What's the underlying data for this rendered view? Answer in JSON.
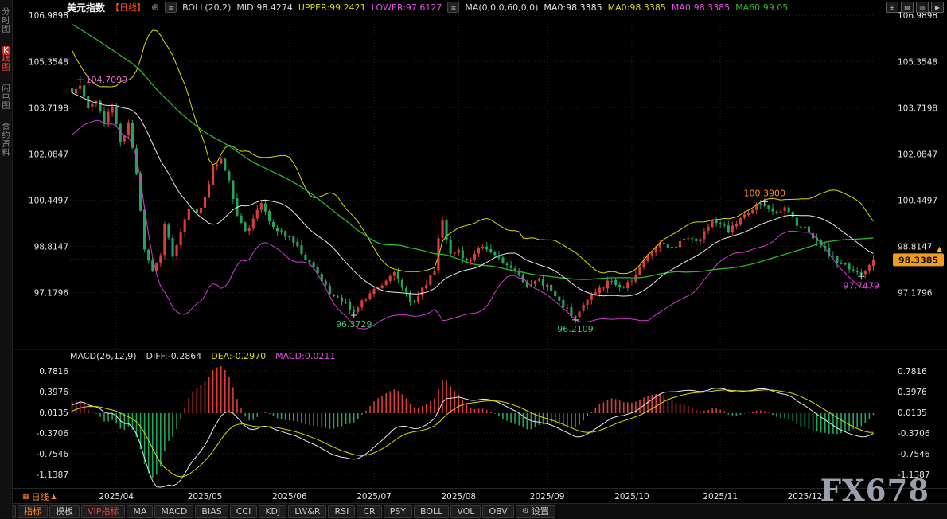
{
  "app": {
    "watermark": "FX678",
    "background": "#000000"
  },
  "sidebar": {
    "items": [
      {
        "label": "分时图",
        "active": false
      },
      {
        "label": "K线图",
        "active": true
      },
      {
        "label": "闪电图",
        "active": false
      },
      {
        "label": "合约资料",
        "active": false
      }
    ]
  },
  "header": {
    "symbol": "美元指数",
    "period": "【日线】",
    "add_glyph": "⊕",
    "badge_glyph": "≣",
    "boll_label": "BOLL(20,2)",
    "boll_mid": "MID:98.4274",
    "boll_upper": "UPPER:99.2421",
    "boll_lower": "LOWER:97.6127",
    "ma_label": "MA(0,0,0,60,0,0)",
    "ma_values": [
      {
        "text": "MA0:98.3385",
        "color": "#e8e8e8"
      },
      {
        "text": "MA0:98.3385",
        "color": "#d6d909"
      },
      {
        "text": "MA0:98.3385",
        "color": "#e24fe2"
      },
      {
        "text": "MA60:99.05",
        "color": "#2db52d"
      }
    ],
    "toolbar_icons": [
      {
        "name": "layout-grid-icon",
        "glyph": "⊞"
      },
      {
        "name": "layout-rows-icon",
        "glyph": "▤"
      },
      {
        "name": "layout-columns-icon",
        "glyph": "▥"
      },
      {
        "name": "expand-icon",
        "glyph": "▶"
      }
    ]
  },
  "main_chart": {
    "y_labels": [
      "106.9898",
      "105.3548",
      "103.7198",
      "102.0847",
      "100.4497",
      "98.8147",
      "97.1796"
    ],
    "y_values": [
      106.9898,
      105.3548,
      103.7198,
      102.0847,
      100.4497,
      98.8147,
      97.1796
    ],
    "ylim": [
      95.25,
      107.25
    ],
    "last_price": "98.3385",
    "last_price_value": 98.3385,
    "annotations": [
      {
        "text": "104.7099",
        "index": 2,
        "price": 104.7099,
        "color": "#e06ac0",
        "placement": "right"
      },
      {
        "text": "100.3900",
        "index": 172,
        "price": 100.39,
        "color": "#ff8c1a",
        "placement": "above"
      },
      {
        "text": "96.3729",
        "index": 70,
        "price": 96.3729,
        "color": "#35c06a",
        "placement": "below"
      },
      {
        "text": "96.2109",
        "index": 125,
        "price": 96.2109,
        "color": "#35c06a",
        "placement": "below"
      },
      {
        "text": "97.7479",
        "index": 196,
        "price": 97.7479,
        "color": "#e24fe2",
        "placement": "below"
      }
    ]
  },
  "macd_panel": {
    "label": "MACD(26,12,9)",
    "diff": "DIFF:-0.2864",
    "dea": "DEA:-0.2970",
    "macd": "MACD:0.0211",
    "y_labels": [
      "0.7816",
      "0.3976",
      "0.0135",
      "-0.3706",
      "-0.7546",
      "-1.1387"
    ],
    "y_values": [
      0.7816,
      0.3976,
      0.0135,
      -0.3706,
      -0.7546,
      -1.1387
    ],
    "ylim": [
      -1.375,
      0.945
    ]
  },
  "x_axis": {
    "labels": [
      {
        "text": "2025/04",
        "index": 11
      },
      {
        "text": "2025/05",
        "index": 33
      },
      {
        "text": "2025/06",
        "index": 54
      },
      {
        "text": "2025/07",
        "index": 75
      },
      {
        "text": "2025/08",
        "index": 96
      },
      {
        "text": "2025/09",
        "index": 118
      },
      {
        "text": "2025/10",
        "index": 139
      },
      {
        "text": "2025/11",
        "index": 161
      },
      {
        "text": "2025/12",
        "index": 182
      }
    ]
  },
  "bottom": {
    "period_tab": {
      "icon_glyph": "▦",
      "label": "日线",
      "arrow": "▲"
    },
    "panel_icon": "⊞",
    "tabs": [
      {
        "label": "指标",
        "accent": true
      },
      {
        "label": "模板"
      },
      {
        "label": "VIP指标",
        "vip": true
      },
      {
        "label": "MA"
      },
      {
        "label": "MACD"
      },
      {
        "label": "BIAS"
      },
      {
        "label": "CCI"
      },
      {
        "label": "KDJ"
      },
      {
        "label": "LW&R"
      },
      {
        "label": "RSI"
      },
      {
        "label": "CR"
      },
      {
        "label": "PSY"
      },
      {
        "label": "BOLL"
      },
      {
        "label": "VOL"
      },
      {
        "label": "OBV"
      },
      {
        "label": "设置",
        "icon": "⚙"
      }
    ]
  },
  "chart_data": {
    "type": "candlestick",
    "instrument": "美元指数",
    "period": "日线",
    "n": 200,
    "seed": 11,
    "wiggle": 0.14,
    "wick": 0.16,
    "colors": {
      "up": "#dd3c3c",
      "down": "#23a55e",
      "boll_mid": "#e8e8e8",
      "boll_up": "#d6d909",
      "boll_low": "#d23bd2",
      "ma60": "#2db52d",
      "diff": "#e8e8e8",
      "dea": "#d6d909",
      "grid": "#232323",
      "axis_text": "#e3e3e3",
      "last_price_line": "#ff9000",
      "last_price_box": "#f09d1d"
    },
    "indicators": {
      "boll": {
        "period": 20,
        "k": 2
      },
      "ma60": 60,
      "macd": {
        "fast": 12,
        "slow": 26,
        "signal": 9
      }
    },
    "waypoints": [
      [
        0,
        104.25
      ],
      [
        2,
        104.5
      ],
      [
        4,
        103.7
      ],
      [
        6,
        103.95
      ],
      [
        8,
        103.2
      ],
      [
        10,
        103.75
      ],
      [
        12,
        102.5
      ],
      [
        14,
        103.2
      ],
      [
        16,
        101.4
      ],
      [
        18,
        98.7
      ],
      [
        20,
        97.95
      ],
      [
        22,
        98.5
      ],
      [
        23,
        99.6
      ],
      [
        25,
        98.45
      ],
      [
        27,
        99.3
      ],
      [
        29,
        100.15
      ],
      [
        31,
        100.0
      ],
      [
        33,
        100.55
      ],
      [
        35,
        101.65
      ],
      [
        37,
        101.9
      ],
      [
        39,
        101.15
      ],
      [
        41,
        99.9
      ],
      [
        43,
        99.35
      ],
      [
        45,
        99.8
      ],
      [
        47,
        100.35
      ],
      [
        49,
        99.7
      ],
      [
        51,
        99.35
      ],
      [
        53,
        99.15
      ],
      [
        55,
        98.95
      ],
      [
        57,
        98.55
      ],
      [
        59,
        98.25
      ],
      [
        61,
        97.85
      ],
      [
        63,
        97.45
      ],
      [
        65,
        97.05
      ],
      [
        67,
        96.85
      ],
      [
        69,
        96.55
      ],
      [
        70,
        96.5
      ],
      [
        72,
        96.9
      ],
      [
        74,
        97.15
      ],
      [
        76,
        97.35
      ],
      [
        78,
        97.6
      ],
      [
        80,
        97.9
      ],
      [
        82,
        97.35
      ],
      [
        84,
        96.85
      ],
      [
        86,
        97.05
      ],
      [
        88,
        97.45
      ],
      [
        90,
        97.95
      ],
      [
        91,
        99.1
      ],
      [
        92,
        99.75
      ],
      [
        93,
        99.05
      ],
      [
        94,
        98.55
      ],
      [
        96,
        98.7
      ],
      [
        98,
        98.35
      ],
      [
        100,
        98.55
      ],
      [
        102,
        98.8
      ],
      [
        104,
        98.6
      ],
      [
        106,
        98.4
      ],
      [
        108,
        98.15
      ],
      [
        110,
        97.95
      ],
      [
        112,
        97.55
      ],
      [
        114,
        97.45
      ],
      [
        116,
        97.65
      ],
      [
        118,
        97.45
      ],
      [
        120,
        97.05
      ],
      [
        122,
        96.65
      ],
      [
        124,
        96.35
      ],
      [
        125,
        96.3
      ],
      [
        127,
        96.75
      ],
      [
        129,
        97.1
      ],
      [
        131,
        97.35
      ],
      [
        133,
        97.6
      ],
      [
        135,
        97.45
      ],
      [
        137,
        97.35
      ],
      [
        139,
        97.6
      ],
      [
        141,
        98.1
      ],
      [
        143,
        98.5
      ],
      [
        145,
        98.8
      ],
      [
        147,
        98.9
      ],
      [
        149,
        98.8
      ],
      [
        151,
        99.0
      ],
      [
        153,
        99.1
      ],
      [
        155,
        99.0
      ],
      [
        157,
        99.35
      ],
      [
        159,
        99.75
      ],
      [
        161,
        99.6
      ],
      [
        163,
        99.3
      ],
      [
        165,
        99.6
      ],
      [
        167,
        99.95
      ],
      [
        169,
        100.1
      ],
      [
        171,
        100.3
      ],
      [
        173,
        100.15
      ],
      [
        175,
        100.0
      ],
      [
        177,
        100.2
      ],
      [
        179,
        99.85
      ],
      [
        181,
        99.5
      ],
      [
        183,
        99.3
      ],
      [
        185,
        99.0
      ],
      [
        187,
        98.75
      ],
      [
        189,
        98.45
      ],
      [
        191,
        98.2
      ],
      [
        193,
        98.0
      ],
      [
        195,
        97.9
      ],
      [
        196,
        97.82
      ],
      [
        197,
        97.95
      ],
      [
        199,
        98.3385
      ]
    ],
    "prehistory": [
      [
        -60,
        109.6
      ],
      [
        -50,
        109.0
      ],
      [
        -40,
        108.0
      ],
      [
        -30,
        106.8
      ],
      [
        -20,
        106.2
      ],
      [
        -14,
        104.6
      ],
      [
        -9,
        103.4
      ],
      [
        -4,
        103.7
      ],
      [
        0,
        104.25
      ]
    ],
    "macd_prehistory": [
      [
        -40,
        104.9
      ],
      [
        -30,
        103.3
      ],
      [
        -22,
        102.9
      ],
      [
        -12,
        103.4
      ],
      [
        -5,
        103.9
      ],
      [
        0,
        104.25
      ]
    ]
  }
}
